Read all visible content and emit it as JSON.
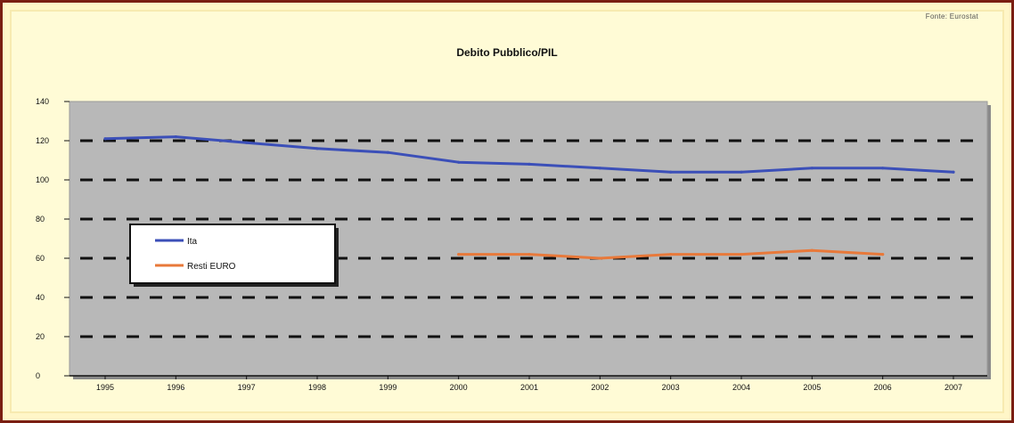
{
  "source_label": "Fonte: Eurostat",
  "chart_data": {
    "type": "line",
    "title": "Debito Pubblico/PIL",
    "x": [
      "1995",
      "1996",
      "1997",
      "1998",
      "1999",
      "2000",
      "2001",
      "2002",
      "2003",
      "2004",
      "2005",
      "2006",
      "2007"
    ],
    "ylim": [
      0,
      140
    ],
    "yticks": [
      0,
      20,
      40,
      60,
      80,
      100,
      120,
      140
    ],
    "grid": "dashed horizontal",
    "legend": "left",
    "series": [
      {
        "name": "Ita",
        "color": "#3b4fb8",
        "values": [
          121,
          122,
          119,
          116,
          114,
          109,
          108,
          106,
          104,
          104,
          106,
          106,
          104
        ]
      },
      {
        "name": "Resti EURO",
        "color": "#e8793a",
        "values": [
          null,
          null,
          null,
          null,
          null,
          62,
          62,
          60,
          62,
          62,
          64,
          62,
          null
        ]
      }
    ]
  }
}
